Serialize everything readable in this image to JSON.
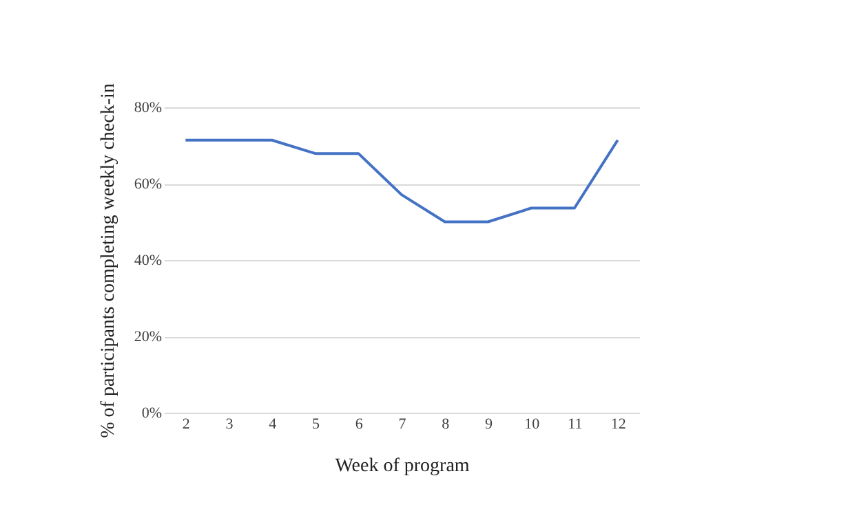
{
  "chart_data": {
    "type": "line",
    "categories": [
      "2",
      "3",
      "4",
      "5",
      "6",
      "7",
      "8",
      "9",
      "10",
      "11",
      "12"
    ],
    "series": [
      {
        "color": "#4472c4",
        "values": [
          71.4,
          71.4,
          71.4,
          67.9,
          67.9,
          57.1,
          50,
          50,
          53.6,
          53.6,
          71.4
        ]
      }
    ],
    "xlabel": "Week of program",
    "ylabel": "% of participants completing weekly check-in",
    "ylim": [
      0,
      80
    ],
    "yticks": [
      {
        "value": 0,
        "label": "0%"
      },
      {
        "value": 20,
        "label": "20%"
      },
      {
        "value": 40,
        "label": "40%"
      },
      {
        "value": 60,
        "label": "60%"
      },
      {
        "value": 80,
        "label": "80%"
      }
    ],
    "grid": "y",
    "marker": "none",
    "line_style": "solid",
    "legend": false
  }
}
